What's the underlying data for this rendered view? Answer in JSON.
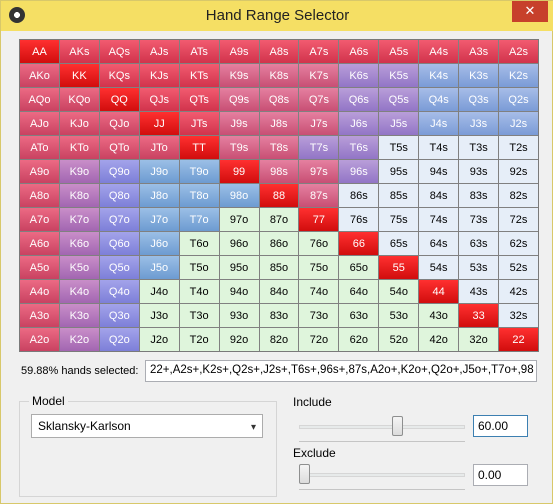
{
  "window": {
    "title": "Hand Range Selector",
    "close_glyph": "✕"
  },
  "grid": {
    "rows": [
      [
        "AA",
        "AKs",
        "AQs",
        "AJs",
        "ATs",
        "A9s",
        "A8s",
        "A7s",
        "A6s",
        "A5s",
        "A4s",
        "A3s",
        "A2s"
      ],
      [
        "AKo",
        "KK",
        "KQs",
        "KJs",
        "KTs",
        "K9s",
        "K8s",
        "K7s",
        "K6s",
        "K5s",
        "K4s",
        "K3s",
        "K2s"
      ],
      [
        "AQo",
        "KQo",
        "QQ",
        "QJs",
        "QTs",
        "Q9s",
        "Q8s",
        "Q7s",
        "Q6s",
        "Q5s",
        "Q4s",
        "Q3s",
        "Q2s"
      ],
      [
        "AJo",
        "KJo",
        "QJo",
        "JJ",
        "JTs",
        "J9s",
        "J8s",
        "J7s",
        "J6s",
        "J5s",
        "J4s",
        "J3s",
        "J2s"
      ],
      [
        "ATo",
        "KTo",
        "QTo",
        "JTo",
        "TT",
        "T9s",
        "T8s",
        "T7s",
        "T6s",
        "T5s",
        "T4s",
        "T3s",
        "T2s"
      ],
      [
        "A9o",
        "K9o",
        "Q9o",
        "J9o",
        "T9o",
        "99",
        "98s",
        "97s",
        "96s",
        "95s",
        "94s",
        "93s",
        "92s"
      ],
      [
        "A8o",
        "K8o",
        "Q8o",
        "J8o",
        "T8o",
        "98o",
        "88",
        "87s",
        "86s",
        "85s",
        "84s",
        "83s",
        "82s"
      ],
      [
        "A7o",
        "K7o",
        "Q7o",
        "J7o",
        "T7o",
        "97o",
        "87o",
        "77",
        "76s",
        "75s",
        "74s",
        "73s",
        "72s"
      ],
      [
        "A6o",
        "K6o",
        "Q6o",
        "J6o",
        "T6o",
        "96o",
        "86o",
        "76o",
        "66",
        "65s",
        "64s",
        "63s",
        "62s"
      ],
      [
        "A5o",
        "K5o",
        "Q5o",
        "J5o",
        "T5o",
        "95o",
        "85o",
        "75o",
        "65o",
        "55",
        "54s",
        "53s",
        "52s"
      ],
      [
        "A4o",
        "K4o",
        "Q4o",
        "J4o",
        "T4o",
        "94o",
        "84o",
        "74o",
        "64o",
        "54o",
        "44",
        "43s",
        "42s"
      ],
      [
        "A3o",
        "K3o",
        "Q3o",
        "J3o",
        "T3o",
        "93o",
        "83o",
        "73o",
        "63o",
        "53o",
        "43o",
        "33",
        "32s"
      ],
      [
        "A2o",
        "K2o",
        "Q2o",
        "J2o",
        "T2o",
        "92o",
        "82o",
        "72o",
        "62o",
        "52o",
        "42o",
        "32o",
        "22"
      ]
    ],
    "selected": [
      [
        1,
        1,
        1,
        1,
        1,
        1,
        1,
        1,
        1,
        1,
        1,
        1,
        1
      ],
      [
        1,
        1,
        1,
        1,
        1,
        1,
        1,
        1,
        1,
        1,
        1,
        1,
        1
      ],
      [
        1,
        1,
        1,
        1,
        1,
        1,
        1,
        1,
        1,
        1,
        1,
        1,
        1
      ],
      [
        1,
        1,
        1,
        1,
        1,
        1,
        1,
        1,
        1,
        1,
        1,
        1,
        1
      ],
      [
        1,
        1,
        1,
        1,
        1,
        1,
        1,
        1,
        1,
        0,
        0,
        0,
        0
      ],
      [
        1,
        1,
        1,
        1,
        1,
        1,
        1,
        1,
        1,
        0,
        0,
        0,
        0
      ],
      [
        1,
        1,
        1,
        1,
        1,
        1,
        1,
        1,
        0,
        0,
        0,
        0,
        0
      ],
      [
        1,
        1,
        1,
        1,
        1,
        0,
        0,
        1,
        0,
        0,
        0,
        0,
        0
      ],
      [
        1,
        1,
        1,
        1,
        0,
        0,
        0,
        0,
        1,
        0,
        0,
        0,
        0
      ],
      [
        1,
        1,
        1,
        1,
        0,
        0,
        0,
        0,
        0,
        1,
        0,
        0,
        0
      ],
      [
        1,
        1,
        1,
        0,
        0,
        0,
        0,
        0,
        0,
        0,
        1,
        0,
        0
      ],
      [
        1,
        1,
        1,
        0,
        0,
        0,
        0,
        0,
        0,
        0,
        0,
        1,
        0
      ],
      [
        1,
        1,
        1,
        0,
        0,
        0,
        0,
        0,
        0,
        0,
        0,
        0,
        1
      ]
    ]
  },
  "summary": {
    "label": "59.88% hands selected:",
    "range_text": "22+,A2s+,K2s+,Q2s+,J2s+,T6s+,96s+,87s,A2o+,K2o+,Q2o+,J5o+,T7o+,98"
  },
  "model": {
    "legend": "Model",
    "selected": "Sklansky-Karlson",
    "arrow_glyph": "▾"
  },
  "include": {
    "legend": "Include",
    "value": "60.00",
    "percent": 60
  },
  "exclude": {
    "legend": "Exclude",
    "value": "0.00",
    "percent": 0
  },
  "icons": {
    "app": "poker-chip-icon",
    "dropdown": "chevron-down-icon"
  }
}
